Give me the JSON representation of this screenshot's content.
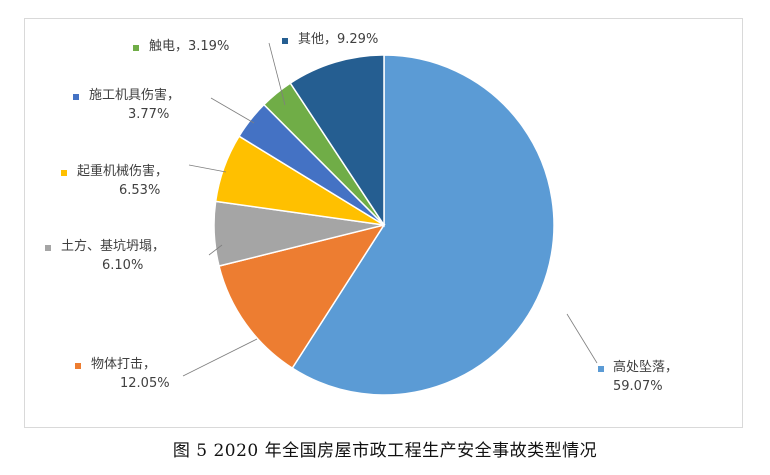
{
  "caption": "图 5 2020 年全国房屋市政工程生产安全事故类型情况",
  "chart_data": {
    "type": "pie",
    "slices": [
      {
        "name": "高处坠落",
        "value": 59.07,
        "label": "59.07%",
        "color": "#5b9bd5"
      },
      {
        "name": "物体打击",
        "value": 12.05,
        "label": "12.05%",
        "color": "#ed7d31"
      },
      {
        "name": "土方、基坑坍塌",
        "value": 6.1,
        "label": "6.10%",
        "color": "#a5a5a5"
      },
      {
        "name": "起重机械伤害",
        "value": 6.53,
        "label": "6.53%",
        "color": "#ffc000"
      },
      {
        "name": "施工机具伤害",
        "value": 3.77,
        "label": "3.77%",
        "color": "#4472c4"
      },
      {
        "name": "触电",
        "value": 3.19,
        "label": "3.19%",
        "color": "#70ad47"
      },
      {
        "name": "其他",
        "value": 9.29,
        "label": "9.29%",
        "color": "#255e91"
      }
    ]
  }
}
